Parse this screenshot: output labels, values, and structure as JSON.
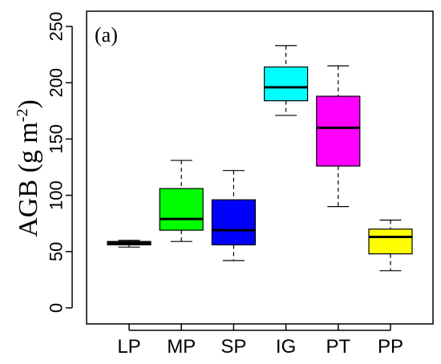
{
  "chart_data": {
    "type": "box",
    "panel_label": "(a)",
    "ylabel": "AGB (g m",
    "ylabel_sup": "-2",
    "ylabel_close": ")",
    "xlabel": "",
    "ylim": [
      0,
      250
    ],
    "yticks": [
      0,
      50,
      100,
      150,
      200,
      250
    ],
    "grid": false,
    "categories": [
      "LP",
      "MP",
      "SP",
      "IG",
      "PT",
      "PP"
    ],
    "boxes": [
      {
        "category": "LP",
        "color": "#000000",
        "whisker_low": 54,
        "q1": 56,
        "median": 57,
        "q3": 59,
        "whisker_high": 60
      },
      {
        "category": "MP",
        "color": "#00ff00",
        "whisker_low": 59,
        "q1": 69,
        "median": 79,
        "q3": 106,
        "whisker_high": 131
      },
      {
        "category": "SP",
        "color": "#0000ff",
        "whisker_low": 42,
        "q1": 56,
        "median": 69,
        "q3": 96,
        "whisker_high": 122
      },
      {
        "category": "IG",
        "color": "#00ffff",
        "whisker_low": 171,
        "q1": 184,
        "median": 196,
        "q3": 214,
        "whisker_high": 233
      },
      {
        "category": "PT",
        "color": "#ff00ff",
        "whisker_low": 90,
        "q1": 126,
        "median": 160,
        "q3": 188,
        "whisker_high": 215
      },
      {
        "category": "PP",
        "color": "#ffff00",
        "whisker_low": 33,
        "q1": 48,
        "median": 63,
        "q3": 70,
        "whisker_high": 78
      }
    ]
  }
}
